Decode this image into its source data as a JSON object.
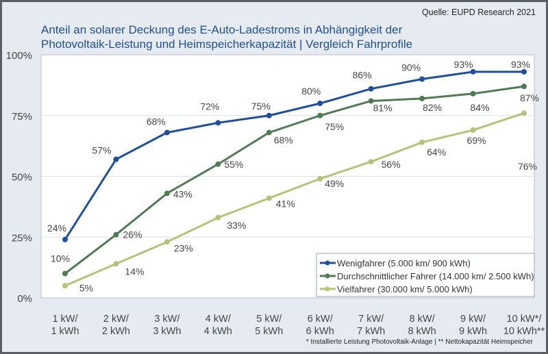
{
  "source": "Quelle: EUPD Research 2021",
  "title_line1": "Anteil an solarer Deckung des E-Auto-Ladestroms in Abhängigkeit der",
  "title_line2": "Photovoltaik-Leistung und Heimspeicherkapazität | Vergleich Fahrprofile",
  "footnote": "* Installierte Leistung Photovoltaik-Anlage | ** Nettokapazität Heimspeicher",
  "chart_data": {
    "type": "line",
    "categories": [
      [
        "1 kW/",
        "1 kWh"
      ],
      [
        "2 kW/",
        "2 kWh"
      ],
      [
        "3 kW/",
        "3 kWh"
      ],
      [
        "4 kW/",
        "4 kWh"
      ],
      [
        "5 kW/",
        "5 kWh"
      ],
      [
        "6 kW/",
        "6 kWh"
      ],
      [
        "7 kW/",
        "7 kWh"
      ],
      [
        "8 kW/",
        "8 kWh"
      ],
      [
        "9 kW/",
        "9 kWh"
      ],
      [
        "10 kW*/",
        "10 kWh**"
      ]
    ],
    "yticks": [
      "0%",
      "25%",
      "50%",
      "75%",
      "100%"
    ],
    "ylim": [
      0,
      100
    ],
    "grid": true,
    "legend_position": "bottom-right",
    "series": [
      {
        "name": "Wenigfahrer (5.000 km/ 900 kWh)",
        "color": "#1f4e9a",
        "values": [
          24,
          57,
          68,
          72,
          75,
          80,
          86,
          90,
          93,
          93
        ]
      },
      {
        "name": "Durchschnittlicher Fahrer (14.000 km/ 2.500 kWh)",
        "color": "#4f7a54",
        "values": [
          10,
          26,
          43,
          55,
          68,
          75,
          81,
          82,
          84,
          87
        ]
      },
      {
        "name": "Vielfahrer (30.000 km/ 5.000 kWh)",
        "color": "#b4c27a",
        "values": [
          5,
          14,
          23,
          33,
          41,
          49,
          56,
          64,
          69,
          76
        ]
      }
    ]
  }
}
